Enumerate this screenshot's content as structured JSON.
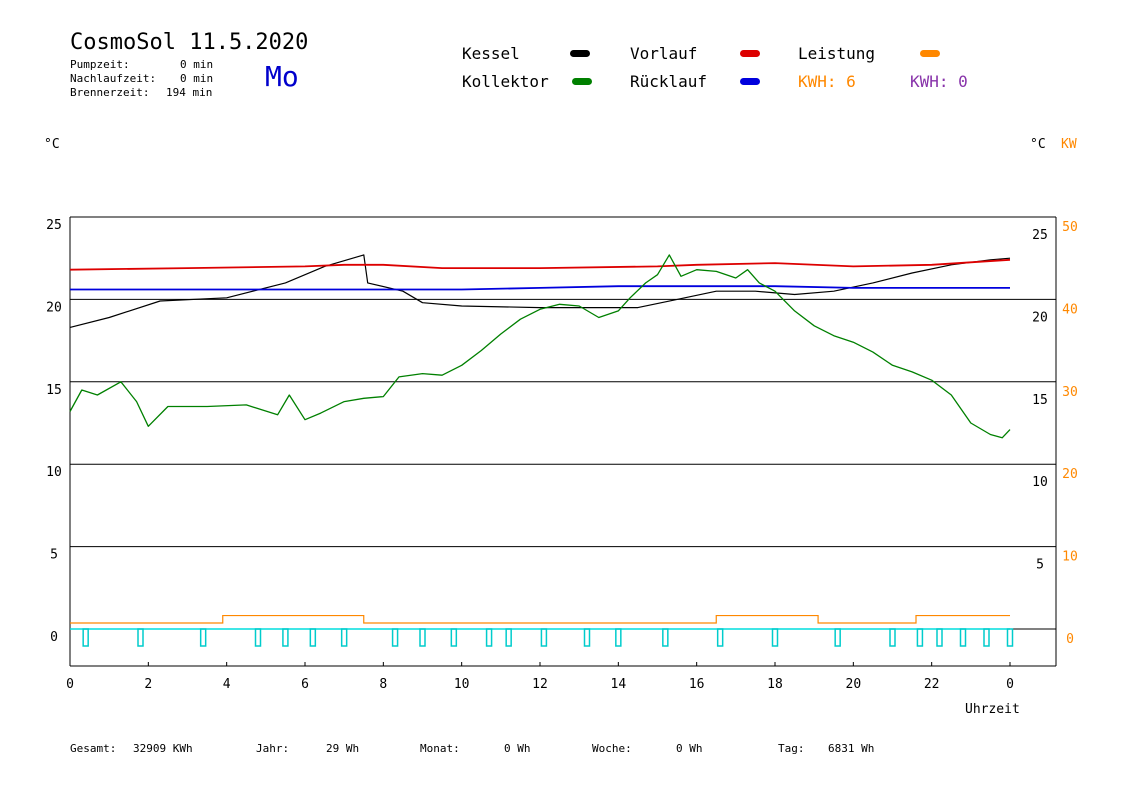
{
  "header": {
    "title": "CosmoSol 11.5.2020",
    "day": "Mo",
    "pump_label": "Pumpzeit:",
    "pump_value": "0 min",
    "afterrun_label": "Nachlaufzeit:",
    "afterrun_value": "0 min",
    "burner_label": "Brennerzeit:",
    "burner_value": "194 min"
  },
  "legend": {
    "kessel": {
      "label": "Kessel",
      "color": "#000000"
    },
    "kollektor": {
      "label": "Kollektor",
      "color": "#008000"
    },
    "vorlauf": {
      "label": "Vorlauf",
      "color": "#dd0000"
    },
    "ruecklauf": {
      "label": "Rücklauf",
      "color": "#0000dd"
    },
    "leistung": {
      "label": "Leistung",
      "color": "#ff8800"
    },
    "kwh1": "KWH: 6",
    "kwh2": "KWH: 0"
  },
  "axes": {
    "left_unit": "°C",
    "right_unit": "°C",
    "right_unit2": "KW",
    "xlabel": "Uhrzeit"
  },
  "footer": {
    "gesamt_label": "Gesamt:",
    "gesamt_value": "32909 KWh",
    "jahr_label": "Jahr:",
    "jahr_value": "29 Wh",
    "monat_label": "Monat:",
    "monat_value": "0 Wh",
    "woche_label": "Woche:",
    "woche_value": "0 Wh",
    "tag_label": "Tag:",
    "tag_value": "6831 Wh"
  },
  "chart_data": {
    "type": "line",
    "xlim": [
      0,
      24
    ],
    "ylim": [
      0,
      25
    ],
    "x_ticks": [
      "0",
      "2",
      "4",
      "6",
      "8",
      "10",
      "12",
      "14",
      "16",
      "18",
      "20",
      "22",
      "0"
    ],
    "y_ticks_left": [
      "0",
      "5",
      "10",
      "15",
      "20",
      "25"
    ],
    "y_ticks_right_temp": [
      "5",
      "10",
      "15",
      "20",
      "25"
    ],
    "y_ticks_right_kw": [
      "0",
      "10",
      "20",
      "30",
      "40",
      "50"
    ],
    "grid": true,
    "series": [
      {
        "name": "Kessel",
        "color": "#000000",
        "points": [
          [
            0,
            18.3
          ],
          [
            1,
            18.9
          ],
          [
            2.3,
            19.9
          ],
          [
            4,
            20.1
          ],
          [
            5.5,
            21.0
          ],
          [
            6.5,
            22.0
          ],
          [
            7.5,
            22.7
          ],
          [
            7.6,
            21.0
          ],
          [
            8.5,
            20.5
          ],
          [
            9,
            19.8
          ],
          [
            10,
            19.6
          ],
          [
            12,
            19.5
          ],
          [
            13,
            19.5
          ],
          [
            14.5,
            19.5
          ],
          [
            15.5,
            20.0
          ],
          [
            16.5,
            20.5
          ],
          [
            17.5,
            20.5
          ],
          [
            18.5,
            20.3
          ],
          [
            19.5,
            20.5
          ],
          [
            20.5,
            21.0
          ],
          [
            21.5,
            21.6
          ],
          [
            22.5,
            22.1
          ],
          [
            23.5,
            22.4
          ],
          [
            24,
            22.5
          ]
        ]
      },
      {
        "name": "Vorlauf",
        "color": "#dd0000",
        "points": [
          [
            0,
            21.8
          ],
          [
            3,
            21.9
          ],
          [
            6,
            22.0
          ],
          [
            7,
            22.1
          ],
          [
            8,
            22.1
          ],
          [
            9.5,
            21.9
          ],
          [
            12,
            21.9
          ],
          [
            15,
            22.0
          ],
          [
            16,
            22.1
          ],
          [
            18,
            22.2
          ],
          [
            20,
            22.0
          ],
          [
            22,
            22.1
          ],
          [
            24,
            22.4
          ]
        ]
      },
      {
        "name": "Rücklauf",
        "color": "#0000dd",
        "points": [
          [
            0,
            20.6
          ],
          [
            3,
            20.6
          ],
          [
            6,
            20.6
          ],
          [
            8,
            20.6
          ],
          [
            10,
            20.6
          ],
          [
            12,
            20.7
          ],
          [
            14,
            20.8
          ],
          [
            16,
            20.8
          ],
          [
            18,
            20.8
          ],
          [
            20,
            20.7
          ],
          [
            22,
            20.7
          ],
          [
            24,
            20.7
          ]
        ]
      },
      {
        "name": "Kollektor",
        "color": "#008000",
        "points": [
          [
            0,
            13.2
          ],
          [
            0.3,
            14.5
          ],
          [
            0.7,
            14.2
          ],
          [
            1.3,
            15.0
          ],
          [
            1.7,
            13.8
          ],
          [
            2.0,
            12.3
          ],
          [
            2.5,
            13.5
          ],
          [
            3.5,
            13.5
          ],
          [
            4.5,
            13.6
          ],
          [
            5.3,
            13.0
          ],
          [
            5.6,
            14.2
          ],
          [
            6.0,
            12.7
          ],
          [
            6.4,
            13.1
          ],
          [
            7.0,
            13.8
          ],
          [
            7.5,
            14.0
          ],
          [
            8.0,
            14.1
          ],
          [
            8.4,
            15.3
          ],
          [
            9.0,
            15.5
          ],
          [
            9.5,
            15.4
          ],
          [
            10,
            16.0
          ],
          [
            10.5,
            16.9
          ],
          [
            11,
            17.9
          ],
          [
            11.5,
            18.8
          ],
          [
            12,
            19.4
          ],
          [
            12.5,
            19.7
          ],
          [
            13,
            19.6
          ],
          [
            13.5,
            18.9
          ],
          [
            14,
            19.3
          ],
          [
            14.3,
            20.1
          ],
          [
            14.7,
            21.0
          ],
          [
            15.0,
            21.5
          ],
          [
            15.3,
            22.7
          ],
          [
            15.6,
            21.4
          ],
          [
            16,
            21.8
          ],
          [
            16.5,
            21.7
          ],
          [
            17,
            21.3
          ],
          [
            17.3,
            21.8
          ],
          [
            17.6,
            21.0
          ],
          [
            18,
            20.5
          ],
          [
            18.5,
            19.3
          ],
          [
            19,
            18.4
          ],
          [
            19.5,
            17.8
          ],
          [
            20,
            17.4
          ],
          [
            20.5,
            16.8
          ],
          [
            21,
            16.0
          ],
          [
            21.5,
            15.6
          ],
          [
            22,
            15.1
          ],
          [
            22.5,
            14.2
          ],
          [
            23,
            12.5
          ],
          [
            23.5,
            11.8
          ],
          [
            23.8,
            11.6
          ],
          [
            24,
            12.1
          ]
        ]
      }
    ],
    "leistung_kw": [
      [
        0,
        0
      ],
      [
        3.9,
        0
      ],
      [
        3.9,
        0.9
      ],
      [
        5.6,
        0.9
      ],
      [
        5.6,
        0.9
      ],
      [
        7.5,
        0.9
      ],
      [
        7.5,
        0
      ],
      [
        16.5,
        0
      ],
      [
        16.5,
        0.9
      ],
      [
        19.1,
        0.9
      ],
      [
        19.1,
        0
      ],
      [
        21.6,
        0
      ],
      [
        21.6,
        0.9
      ],
      [
        24,
        0.9
      ]
    ],
    "pump_pulses_hours": [
      0.4,
      1.8,
      3.4,
      4.8,
      5.5,
      6.2,
      7.0,
      8.3,
      9.0,
      9.8,
      10.7,
      11.2,
      12.1,
      13.2,
      14.0,
      15.2,
      16.6,
      18.0,
      19.6,
      21.0,
      21.7,
      22.2,
      22.8,
      23.4,
      24.0
    ]
  }
}
